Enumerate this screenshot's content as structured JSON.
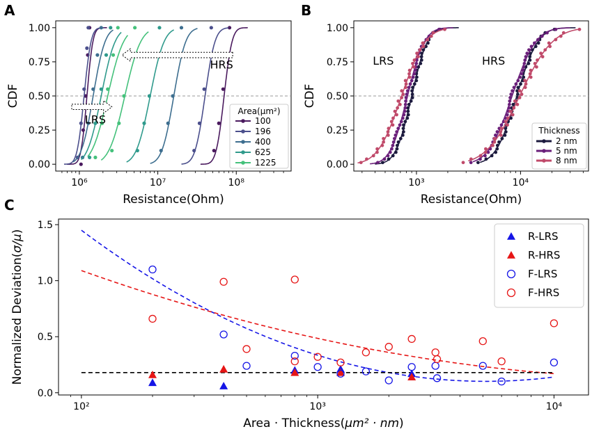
{
  "chart_data": [
    {
      "panel": "A",
      "type": "line",
      "xlabel": "Resistance(Ohm)",
      "ylabel": "CDF",
      "x_scale": "log",
      "xlim": [
        500000,
        500000000
      ],
      "ylim": [
        -0.05,
        1.05
      ],
      "x_ticks": [
        {
          "value": 1000000,
          "label": "10⁶"
        },
        {
          "value": 10000000,
          "label": "10⁷"
        },
        {
          "value": 100000000,
          "label": "10⁸"
        }
      ],
      "y_ticks": [
        {
          "value": 0,
          "label": "0.00"
        },
        {
          "value": 0.25,
          "label": "0.25"
        },
        {
          "value": 0.5,
          "label": "0.50"
        },
        {
          "value": 0.75,
          "label": "0.75"
        },
        {
          "value": 1,
          "label": "1.00"
        }
      ],
      "reference_line": {
        "y": 0.5,
        "style": "dashed",
        "color": "#999999"
      },
      "legend": {
        "title": "Area(μm²)",
        "position": "lower-right"
      },
      "annotations": [
        {
          "text": "HRS",
          "x": 65000000,
          "y": 0.7
        },
        {
          "text": "LRS",
          "x": 1600000,
          "y": 0.3
        }
      ],
      "arrows": [
        {
          "direction": "left",
          "from": [
            90000000,
            0.8
          ],
          "to": [
            3500000,
            0.8
          ]
        },
        {
          "direction": "right",
          "from": [
            800000,
            0.42
          ],
          "to": [
            2600000,
            0.42
          ]
        }
      ],
      "series": [
        {
          "name": "100",
          "color": "#4a1a5e",
          "lrs_median": 1250000,
          "lrs_sigma": 0.06,
          "hrs_median": 70000000,
          "hrs_sigma": 0.08,
          "lrs_points": [
            [
              1050000,
              0.0
            ],
            [
              1120000,
              0.25
            ],
            [
              1200000,
              0.5
            ],
            [
              1280000,
              0.8
            ],
            [
              1350000,
              1.0
            ]
          ],
          "hrs_points": [
            [
              52000000,
              0.1
            ],
            [
              60000000,
              0.3
            ],
            [
              68000000,
              0.55
            ],
            [
              75000000,
              0.8
            ],
            [
              82000000,
              1.0
            ]
          ]
        },
        {
          "name": "196",
          "color": "#4b4f8c",
          "lrs_median": 1150000,
          "lrs_sigma": 0.07,
          "hrs_median": 40000000,
          "hrs_sigma": 0.1,
          "lrs_points": [
            [
              950000,
              0.05
            ],
            [
              1050000,
              0.3
            ],
            [
              1150000,
              0.55
            ],
            [
              1250000,
              0.85
            ],
            [
              1300000,
              1.0
            ]
          ],
          "hrs_points": [
            [
              29000000,
              0.1
            ],
            [
              34000000,
              0.3
            ],
            [
              39000000,
              0.55
            ],
            [
              44000000,
              0.8
            ],
            [
              48000000,
              1.0
            ]
          ]
        },
        {
          "name": "400",
          "color": "#3d6e8f",
          "lrs_median": 1500000,
          "lrs_sigma": 0.12,
          "hrs_median": 16000000,
          "hrs_sigma": 0.12,
          "lrs_points": [
            [
              1100000,
              0.05
            ],
            [
              1300000,
              0.3
            ],
            [
              1500000,
              0.55
            ],
            [
              1700000,
              0.8
            ],
            [
              1900000,
              1.0
            ]
          ],
          "hrs_points": [
            [
              11000000,
              0.1
            ],
            [
              13500000,
              0.3
            ],
            [
              15500000,
              0.5
            ],
            [
              18000000,
              0.8
            ],
            [
              20000000,
              1.0
            ]
          ]
        },
        {
          "name": "625",
          "color": "#2f9a8c",
          "lrs_median": 1900000,
          "lrs_sigma": 0.14,
          "hrs_median": 8000000,
          "hrs_sigma": 0.14,
          "lrs_points": [
            [
              1350000,
              0.05
            ],
            [
              1600000,
              0.3
            ],
            [
              1900000,
              0.55
            ],
            [
              2200000,
              0.8
            ],
            [
              2500000,
              1.0
            ]
          ],
          "hrs_points": [
            [
              5500000,
              0.1
            ],
            [
              6700000,
              0.3
            ],
            [
              7800000,
              0.5
            ],
            [
              9200000,
              0.8
            ],
            [
              10500000,
              1.0
            ]
          ]
        },
        {
          "name": "1225",
          "color": "#44c17b",
          "lrs_median": 2300000,
          "lrs_sigma": 0.16,
          "hrs_median": 3800000,
          "hrs_sigma": 0.16,
          "lrs_points": [
            [
              1600000,
              0.05
            ],
            [
              1950000,
              0.3
            ],
            [
              2300000,
              0.55
            ],
            [
              2700000,
              0.8
            ],
            [
              3100000,
              1.0
            ]
          ],
          "hrs_points": [
            [
              2600000,
              0.1
            ],
            [
              3200000,
              0.3
            ],
            [
              3700000,
              0.5
            ],
            [
              4400000,
              0.8
            ],
            [
              5100000,
              1.0
            ]
          ]
        }
      ]
    },
    {
      "panel": "B",
      "type": "line",
      "xlabel": "Resistance(Ohm)",
      "ylabel": "CDF",
      "x_scale": "log",
      "xlim": [
        250,
        45000
      ],
      "ylim": [
        -0.05,
        1.05
      ],
      "x_ticks": [
        {
          "value": 1000,
          "label": "10³"
        },
        {
          "value": 10000,
          "label": "10⁴"
        }
      ],
      "y_ticks": [
        {
          "value": 0,
          "label": "0.00"
        },
        {
          "value": 0.25,
          "label": "0.25"
        },
        {
          "value": 0.5,
          "label": "0.50"
        },
        {
          "value": 0.75,
          "label": "0.75"
        },
        {
          "value": 1,
          "label": "1.00"
        }
      ],
      "reference_line": {
        "y": 0.5,
        "style": "dashed",
        "color": "#999999"
      },
      "legend": {
        "title": "Thickness",
        "position": "lower-right"
      },
      "annotations": [
        {
          "text": "LRS",
          "x": 480,
          "y": 0.73
        },
        {
          "text": "HRS",
          "x": 5500,
          "y": 0.73
        }
      ],
      "series": [
        {
          "name": "2 nm",
          "color": "#1c1a3e",
          "lrs_median": 900,
          "lrs_sigma": 0.12,
          "hrs_median": 9200,
          "hrs_sigma": 0.16,
          "lrs_range": [
            470,
            1700
          ],
          "hrs_range": [
            4800,
            26000
          ]
        },
        {
          "name": "5 nm",
          "color": "#6a1f7a",
          "lrs_median": 820,
          "lrs_sigma": 0.13,
          "hrs_median": 8300,
          "hrs_sigma": 0.18,
          "lrs_range": [
            420,
            1500
          ],
          "hrs_range": [
            4100,
            23000
          ]
        },
        {
          "name": "8 nm",
          "color": "#c04a6a",
          "lrs_median": 720,
          "lrs_sigma": 0.18,
          "hrs_median": 9800,
          "hrs_sigma": 0.25,
          "lrs_range": [
            320,
            1300
          ],
          "hrs_range": [
            3700,
            28000
          ]
        }
      ]
    },
    {
      "panel": "C",
      "type": "scatter",
      "xlabel_plain": "Area · Thickness(",
      "xlabel_italic": "μm² · nm",
      "xlabel_end": ")",
      "ylabel_plain": "Normalized Deviation(",
      "ylabel_italic": "σ/μ",
      "ylabel_end": ")",
      "x_scale": "log",
      "xlim": [
        80,
        14000
      ],
      "ylim": [
        -0.02,
        1.55
      ],
      "x_ticks": [
        {
          "value": 100,
          "label": "10²"
        },
        {
          "value": 1000,
          "label": "10³"
        },
        {
          "value": 10000,
          "label": "10⁴"
        }
      ],
      "y_ticks": [
        {
          "value": 0,
          "label": "0.0"
        },
        {
          "value": 0.5,
          "label": "0.5"
        },
        {
          "value": 1,
          "label": "1.0"
        },
        {
          "value": 1.5,
          "label": "1.5"
        }
      ],
      "legend": {
        "position": "upper-right"
      },
      "reference_line": {
        "y": 0.18,
        "style": "dashed",
        "color": "#000000"
      },
      "series": [
        {
          "name": "R-LRS",
          "marker": "triangle",
          "filled": true,
          "color": "#1515e6",
          "x": [
            200,
            400,
            800,
            1250,
            2500
          ],
          "y": [
            0.09,
            0.06,
            0.2,
            0.21,
            0.17
          ]
        },
        {
          "name": "R-HRS",
          "marker": "triangle",
          "filled": true,
          "color": "#e61515",
          "x": [
            200,
            400,
            800,
            1250,
            2500
          ],
          "y": [
            0.16,
            0.21,
            0.18,
            0.18,
            0.14
          ]
        },
        {
          "name": "F-LRS",
          "marker": "circle",
          "filled": false,
          "color": "#1515e6",
          "x": [
            200,
            400,
            500,
            800,
            1000,
            1250,
            1600,
            2000,
            2500,
            3150,
            3200,
            5000,
            6000,
            10000
          ],
          "y": [
            1.1,
            0.52,
            0.24,
            0.33,
            0.23,
            0.17,
            0.19,
            0.11,
            0.23,
            0.24,
            0.13,
            0.24,
            0.1,
            0.27
          ]
        },
        {
          "name": "F-HRS",
          "marker": "circle",
          "filled": false,
          "color": "#e61515",
          "x": [
            200,
            400,
            500,
            800,
            800,
            1000,
            1250,
            1600,
            2000,
            2500,
            3150,
            3200,
            5000,
            6000,
            10000
          ],
          "y": [
            0.66,
            0.99,
            0.39,
            1.01,
            0.28,
            0.32,
            0.27,
            0.36,
            0.41,
            0.48,
            0.36,
            0.3,
            0.46,
            0.28,
            0.62
          ]
        }
      ],
      "fits": [
        {
          "color": "#1515e6",
          "style": "dashed",
          "formula": "quadratic in log10(x)",
          "coeffs": [
            1.45,
            -1.575,
            0.46
          ]
        },
        {
          "color": "#e61515",
          "style": "dashed",
          "formula": "quadratic in log10(x)",
          "coeffs": [
            1.09,
            -0.75,
            0.145
          ]
        }
      ]
    }
  ]
}
